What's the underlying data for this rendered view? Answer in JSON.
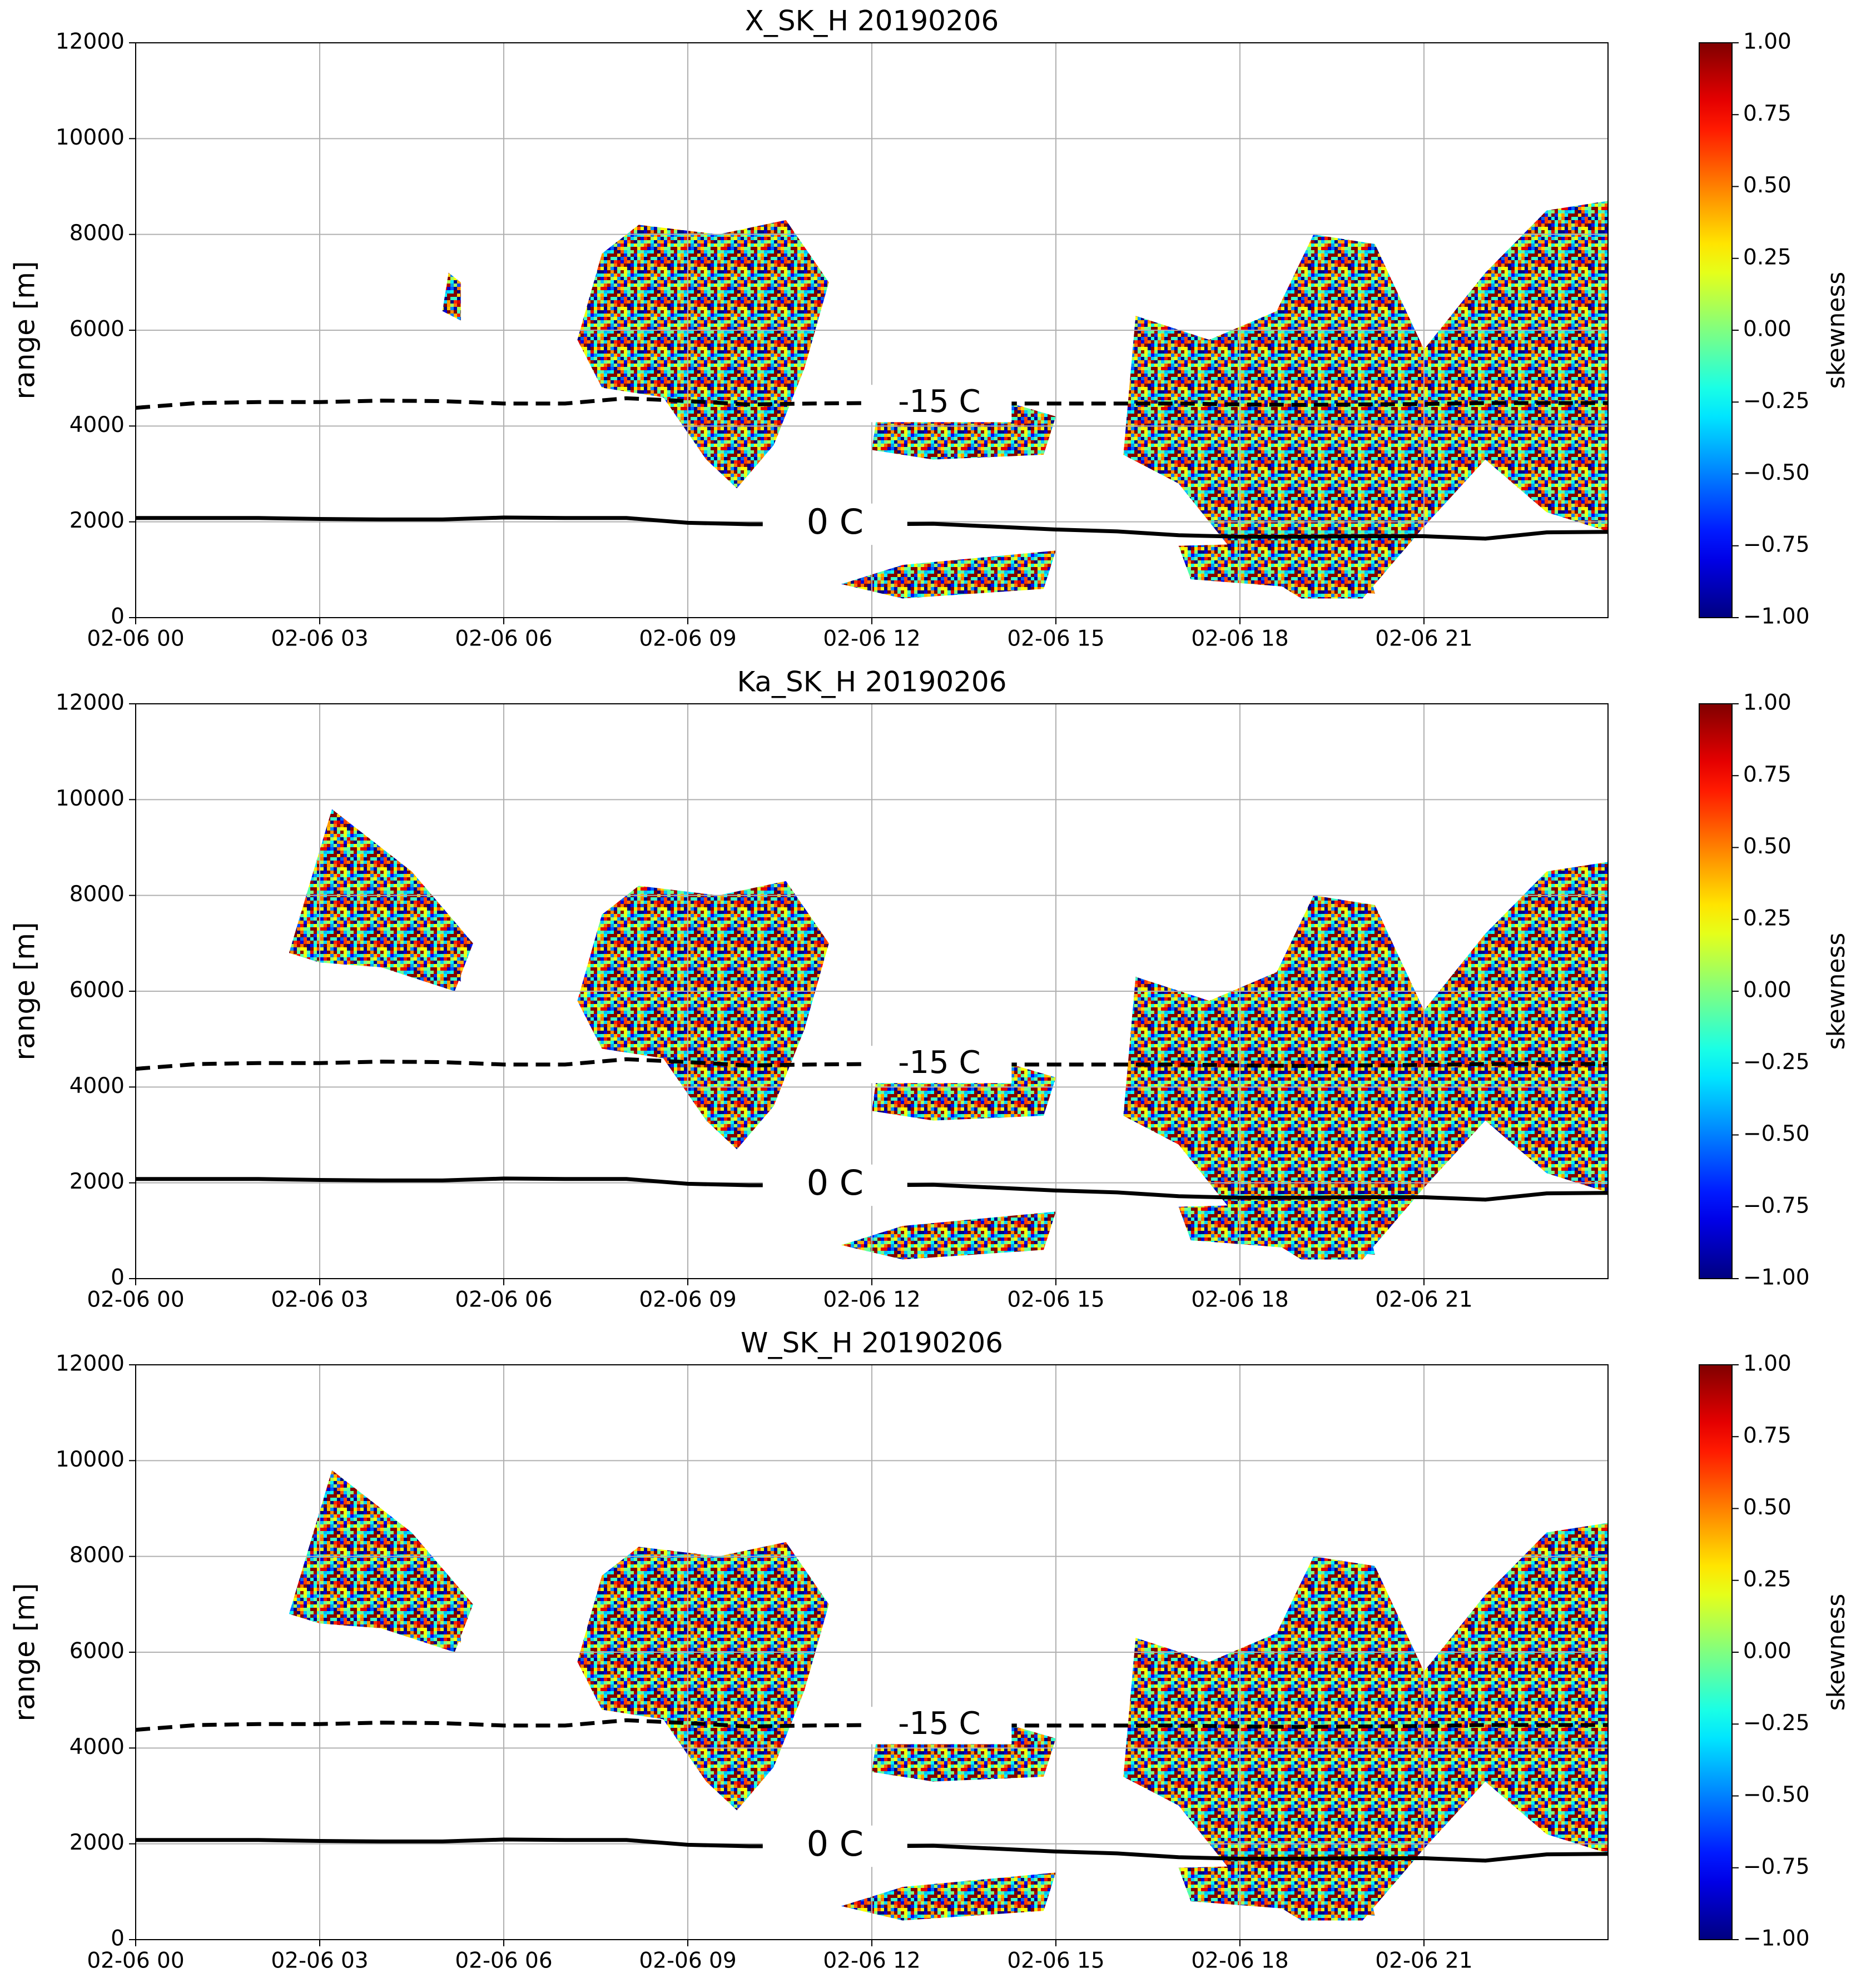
{
  "chart_data": [
    {
      "type": "line",
      "title": "X_SK_H 20190206",
      "ylabel": "range [m]",
      "x": [
        0,
        1,
        2,
        3,
        4,
        5,
        6,
        7,
        8,
        9,
        10,
        11,
        12,
        13,
        14,
        15,
        16,
        17,
        18,
        19,
        20,
        21,
        22,
        23,
        24
      ],
      "xlim": [
        0,
        24
      ],
      "xticks": [
        {
          "value": 0,
          "label": "02-06 00"
        },
        {
          "value": 3,
          "label": "02-06 03"
        },
        {
          "value": 6,
          "label": "02-06 06"
        },
        {
          "value": 9,
          "label": "02-06 09"
        },
        {
          "value": 12,
          "label": "02-06 12"
        },
        {
          "value": 15,
          "label": "02-06 15"
        },
        {
          "value": 18,
          "label": "02-06 18"
        },
        {
          "value": 21,
          "label": "02-06 21"
        }
      ],
      "ylim": [
        0,
        12000
      ],
      "yticks": [
        0,
        2000,
        4000,
        6000,
        8000,
        10000,
        12000
      ],
      "grid": true,
      "series": [
        {
          "name": "-15 C",
          "color": "#000000",
          "dash": true,
          "values": [
            4380,
            4480,
            4500,
            4500,
            4530,
            4520,
            4470,
            4470,
            4580,
            4520,
            4450,
            4470,
            4480,
            4470,
            4470,
            4470,
            4470,
            4470,
            4450,
            4440,
            4450,
            4460,
            4480,
            4480,
            4480
          ]
        },
        {
          "name": "0 C",
          "color": "#000000",
          "dash": false,
          "values": [
            2080,
            2080,
            2080,
            2060,
            2050,
            2050,
            2090,
            2080,
            2080,
            1980,
            1950,
            1950,
            1950,
            1960,
            1900,
            1840,
            1800,
            1720,
            1690,
            1690,
            1700,
            1700,
            1650,
            1780,
            1790
          ]
        }
      ],
      "colorbar": {
        "label": "skewness",
        "lim": [
          -1,
          1
        ],
        "ticks": [
          {
            "value": 1,
            "label": "1.00"
          },
          {
            "value": 0.75,
            "label": "0.75"
          },
          {
            "value": 0.5,
            "label": "0.50"
          },
          {
            "value": 0.25,
            "label": "0.25"
          },
          {
            "value": 0,
            "label": "0.00"
          },
          {
            "value": -0.25,
            "label": "−0.25"
          },
          {
            "value": -0.5,
            "label": "−0.50"
          },
          {
            "value": -0.75,
            "label": "−0.75"
          },
          {
            "value": -1,
            "label": "−1.00"
          }
        ]
      }
    },
    {
      "type": "line",
      "title": "Ka_SK_H 20190206",
      "ylabel": "range [m]",
      "x": [
        0,
        1,
        2,
        3,
        4,
        5,
        6,
        7,
        8,
        9,
        10,
        11,
        12,
        13,
        14,
        15,
        16,
        17,
        18,
        19,
        20,
        21,
        22,
        23,
        24
      ],
      "xlim": [
        0,
        24
      ],
      "xticks": [
        {
          "value": 0,
          "label": "02-06 00"
        },
        {
          "value": 3,
          "label": "02-06 03"
        },
        {
          "value": 6,
          "label": "02-06 06"
        },
        {
          "value": 9,
          "label": "02-06 09"
        },
        {
          "value": 12,
          "label": "02-06 12"
        },
        {
          "value": 15,
          "label": "02-06 15"
        },
        {
          "value": 18,
          "label": "02-06 18"
        },
        {
          "value": 21,
          "label": "02-06 21"
        }
      ],
      "ylim": [
        0,
        12000
      ],
      "yticks": [
        0,
        2000,
        4000,
        6000,
        8000,
        10000,
        12000
      ],
      "grid": true,
      "series": [
        {
          "name": "-15 C",
          "color": "#000000",
          "dash": true,
          "values": [
            4380,
            4480,
            4500,
            4500,
            4530,
            4520,
            4470,
            4470,
            4580,
            4520,
            4450,
            4470,
            4480,
            4470,
            4470,
            4470,
            4470,
            4470,
            4450,
            4440,
            4450,
            4460,
            4480,
            4480,
            4480
          ]
        },
        {
          "name": "0 C",
          "color": "#000000",
          "dash": false,
          "values": [
            2080,
            2080,
            2080,
            2060,
            2050,
            2050,
            2090,
            2080,
            2080,
            1980,
            1950,
            1950,
            1950,
            1960,
            1900,
            1840,
            1800,
            1720,
            1690,
            1690,
            1700,
            1700,
            1650,
            1780,
            1790
          ]
        }
      ],
      "colorbar": {
        "label": "skewness",
        "lim": [
          -1,
          1
        ],
        "ticks": [
          {
            "value": 1,
            "label": "1.00"
          },
          {
            "value": 0.75,
            "label": "0.75"
          },
          {
            "value": 0.5,
            "label": "0.50"
          },
          {
            "value": 0.25,
            "label": "0.25"
          },
          {
            "value": 0,
            "label": "0.00"
          },
          {
            "value": -0.25,
            "label": "−0.25"
          },
          {
            "value": -0.5,
            "label": "−0.50"
          },
          {
            "value": -0.75,
            "label": "−0.75"
          },
          {
            "value": -1,
            "label": "−1.00"
          }
        ]
      }
    },
    {
      "type": "line",
      "title": "W_SK_H 20190206",
      "ylabel": "range [m]",
      "x": [
        0,
        1,
        2,
        3,
        4,
        5,
        6,
        7,
        8,
        9,
        10,
        11,
        12,
        13,
        14,
        15,
        16,
        17,
        18,
        19,
        20,
        21,
        22,
        23,
        24
      ],
      "xlim": [
        0,
        24
      ],
      "xticks": [
        {
          "value": 0,
          "label": "02-06 00"
        },
        {
          "value": 3,
          "label": "02-06 03"
        },
        {
          "value": 6,
          "label": "02-06 06"
        },
        {
          "value": 9,
          "label": "02-06 09"
        },
        {
          "value": 12,
          "label": "02-06 12"
        },
        {
          "value": 15,
          "label": "02-06 15"
        },
        {
          "value": 18,
          "label": "02-06 18"
        },
        {
          "value": 21,
          "label": "02-06 21"
        }
      ],
      "ylim": [
        0,
        12000
      ],
      "yticks": [
        0,
        2000,
        4000,
        6000,
        8000,
        10000,
        12000
      ],
      "grid": true,
      "series": [
        {
          "name": "-15 C",
          "color": "#000000",
          "dash": true,
          "values": [
            4380,
            4480,
            4500,
            4500,
            4530,
            4520,
            4470,
            4470,
            4580,
            4520,
            4450,
            4470,
            4480,
            4470,
            4470,
            4470,
            4470,
            4470,
            4450,
            4440,
            4450,
            4460,
            4480,
            4480,
            4480
          ]
        },
        {
          "name": "0 C",
          "color": "#000000",
          "dash": false,
          "values": [
            2080,
            2080,
            2080,
            2060,
            2050,
            2050,
            2090,
            2080,
            2080,
            1980,
            1950,
            1950,
            1950,
            1960,
            1900,
            1840,
            1800,
            1720,
            1690,
            1690,
            1700,
            1700,
            1650,
            1780,
            1790
          ]
        }
      ],
      "colorbar": {
        "label": "skewness",
        "lim": [
          -1,
          1
        ],
        "ticks": [
          {
            "value": 1,
            "label": "1.00"
          },
          {
            "value": 0.75,
            "label": "0.75"
          },
          {
            "value": 0.5,
            "label": "0.50"
          },
          {
            "value": 0.25,
            "label": "0.25"
          },
          {
            "value": 0,
            "label": "0.00"
          },
          {
            "value": -0.25,
            "label": "−0.25"
          },
          {
            "value": -0.5,
            "label": "−0.50"
          },
          {
            "value": -0.75,
            "label": "−0.75"
          },
          {
            "value": -1,
            "label": "−1.00"
          }
        ]
      }
    }
  ]
}
